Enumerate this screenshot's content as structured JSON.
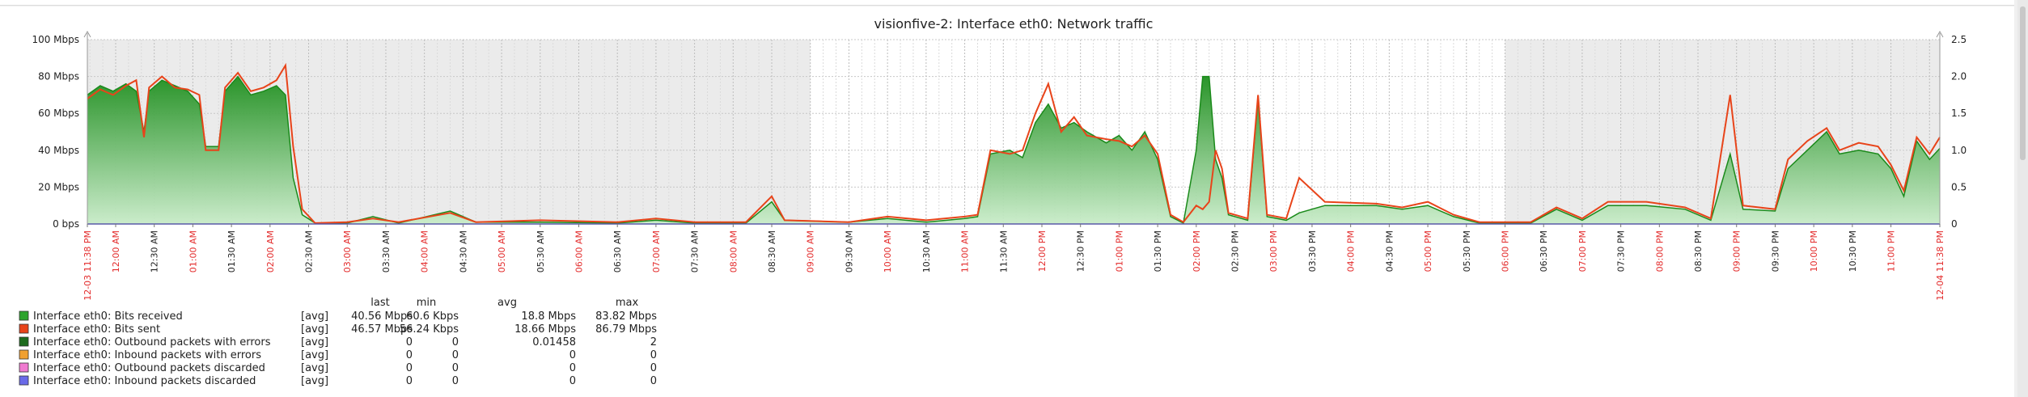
{
  "chart_data": {
    "type": "area",
    "title": "visionfive-2: Interface eth0: Network traffic",
    "y_left": {
      "ticks": [
        "0 bps",
        "20 Mbps",
        "40 Mbps",
        "60 Mbps",
        "80 Mbps",
        "100 Mbps"
      ],
      "min": 0,
      "max": 100,
      "unit": "Mbps"
    },
    "y_right": {
      "ticks": [
        "0",
        "0.5",
        "1.0",
        "1.5",
        "2.0",
        "2.5"
      ],
      "min": 0,
      "max": 2.5
    },
    "x_labels": [
      {
        "text": "12-03 11:38 PM",
        "red": true
      },
      {
        "text": "12:00 AM",
        "red": true
      },
      {
        "text": "12:30 AM",
        "red": false
      },
      {
        "text": "01:00 AM",
        "red": true
      },
      {
        "text": "01:30 AM",
        "red": false
      },
      {
        "text": "02:00 AM",
        "red": true
      },
      {
        "text": "02:30 AM",
        "red": false
      },
      {
        "text": "03:00 AM",
        "red": true
      },
      {
        "text": "03:30 AM",
        "red": false
      },
      {
        "text": "04:00 AM",
        "red": true
      },
      {
        "text": "04:30 AM",
        "red": false
      },
      {
        "text": "05:00 AM",
        "red": true
      },
      {
        "text": "05:30 AM",
        "red": false
      },
      {
        "text": "06:00 AM",
        "red": true
      },
      {
        "text": "06:30 AM",
        "red": false
      },
      {
        "text": "07:00 AM",
        "red": true
      },
      {
        "text": "07:30 AM",
        "red": false
      },
      {
        "text": "08:00 AM",
        "red": true
      },
      {
        "text": "08:30 AM",
        "red": false
      },
      {
        "text": "09:00 AM",
        "red": true
      },
      {
        "text": "09:30 AM",
        "red": false
      },
      {
        "text": "10:00 AM",
        "red": true
      },
      {
        "text": "10:30 AM",
        "red": false
      },
      {
        "text": "11:00 AM",
        "red": true
      },
      {
        "text": "11:30 AM",
        "red": false
      },
      {
        "text": "12:00 PM",
        "red": true
      },
      {
        "text": "12:30 PM",
        "red": false
      },
      {
        "text": "01:00 PM",
        "red": true
      },
      {
        "text": "01:30 PM",
        "red": false
      },
      {
        "text": "02:00 PM",
        "red": true
      },
      {
        "text": "02:30 PM",
        "red": false
      },
      {
        "text": "03:00 PM",
        "red": true
      },
      {
        "text": "03:30 PM",
        "red": false
      },
      {
        "text": "04:00 PM",
        "red": true
      },
      {
        "text": "04:30 PM",
        "red": false
      },
      {
        "text": "05:00 PM",
        "red": true
      },
      {
        "text": "05:30 PM",
        "red": false
      },
      {
        "text": "06:00 PM",
        "red": true
      },
      {
        "text": "06:30 PM",
        "red": false
      },
      {
        "text": "07:00 PM",
        "red": true
      },
      {
        "text": "07:30 PM",
        "red": false
      },
      {
        "text": "08:00 PM",
        "red": true
      },
      {
        "text": "08:30 PM",
        "red": false
      },
      {
        "text": "09:00 PM",
        "red": true
      },
      {
        "text": "09:30 PM",
        "red": false
      },
      {
        "text": "10:00 PM",
        "red": true
      },
      {
        "text": "10:30 PM",
        "red": false
      },
      {
        "text": "11:00 PM",
        "red": true
      },
      {
        "text": "12-04 11:38 PM",
        "red": true
      }
    ],
    "x_hours": {
      "start": "2023-12-03 23:38",
      "end": "2023-12-04 23:38"
    },
    "shaded_periods": [
      {
        "from": "2023-12-03 23:38",
        "to": "2023-12-04 09:00"
      },
      {
        "from": "2023-12-04 18:00",
        "to": "2023-12-04 23:38"
      }
    ],
    "series": [
      {
        "name": "Interface eth0: Bits received",
        "color": "#2da32d",
        "func": "[avg]",
        "last": "40.56 Mbps",
        "min": "60.6 Kbps",
        "avg": "18.8 Mbps",
        "max": "83.82 Mbps",
        "points": [
          [
            "2023-12-03 23:38",
            70
          ],
          [
            "2023-12-03 23:48",
            75
          ],
          [
            "2023-12-03 23:58",
            72
          ],
          [
            "2023-12-04 00:08",
            76
          ],
          [
            "2023-12-04 00:16",
            72
          ],
          [
            "2023-12-04 00:22",
            50
          ],
          [
            "2023-12-04 00:26",
            72
          ],
          [
            "2023-12-04 00:36",
            78
          ],
          [
            "2023-12-04 00:46",
            75
          ],
          [
            "2023-12-04 00:56",
            72
          ],
          [
            "2023-12-04 01:05",
            65
          ],
          [
            "2023-12-04 01:10",
            42
          ],
          [
            "2023-12-04 01:20",
            42
          ],
          [
            "2023-12-04 01:25",
            72
          ],
          [
            "2023-12-04 01:35",
            80
          ],
          [
            "2023-12-04 01:45",
            70
          ],
          [
            "2023-12-04 01:55",
            72
          ],
          [
            "2023-12-04 02:05",
            75
          ],
          [
            "2023-12-04 02:12",
            70
          ],
          [
            "2023-12-04 02:18",
            25
          ],
          [
            "2023-12-04 02:25",
            5
          ],
          [
            "2023-12-04 02:35",
            0.5
          ],
          [
            "2023-12-04 03:00",
            0.5
          ],
          [
            "2023-12-04 03:20",
            4
          ],
          [
            "2023-12-04 03:40",
            0.5
          ],
          [
            "2023-12-04 04:20",
            7
          ],
          [
            "2023-12-04 04:40",
            1
          ],
          [
            "2023-12-04 05:30",
            1
          ],
          [
            "2023-12-04 06:30",
            0.5
          ],
          [
            "2023-12-04 07:00",
            2
          ],
          [
            "2023-12-04 07:30",
            0.5
          ],
          [
            "2023-12-04 08:10",
            0.5
          ],
          [
            "2023-12-04 08:30",
            12
          ],
          [
            "2023-12-04 08:40",
            2
          ],
          [
            "2023-12-04 09:30",
            1
          ],
          [
            "2023-12-04 10:00",
            3
          ],
          [
            "2023-12-04 10:30",
            1
          ],
          [
            "2023-12-04 11:00",
            3
          ],
          [
            "2023-12-04 11:10",
            4
          ],
          [
            "2023-12-04 11:20",
            38
          ],
          [
            "2023-12-04 11:35",
            40
          ],
          [
            "2023-12-04 11:45",
            36
          ],
          [
            "2023-12-04 11:55",
            55
          ],
          [
            "2023-12-04 12:05",
            65
          ],
          [
            "2023-12-04 12:15",
            52
          ],
          [
            "2023-12-04 12:25",
            55
          ],
          [
            "2023-12-04 12:35",
            50
          ],
          [
            "2023-12-04 12:50",
            44
          ],
          [
            "2023-12-04 13:00",
            48
          ],
          [
            "2023-12-04 13:10",
            40
          ],
          [
            "2023-12-04 13:20",
            50
          ],
          [
            "2023-12-04 13:30",
            35
          ],
          [
            "2023-12-04 13:40",
            4
          ],
          [
            "2023-12-04 13:50",
            0.5
          ],
          [
            "2023-12-04 14:00",
            40
          ],
          [
            "2023-12-04 14:05",
            80
          ],
          [
            "2023-12-04 14:10",
            80
          ],
          [
            "2023-12-04 14:15",
            35
          ],
          [
            "2023-12-04 14:20",
            25
          ],
          [
            "2023-12-04 14:25",
            5
          ],
          [
            "2023-12-04 14:40",
            2
          ],
          [
            "2023-12-04 14:48",
            68
          ],
          [
            "2023-12-04 14:55",
            4
          ],
          [
            "2023-12-04 15:10",
            2
          ],
          [
            "2023-12-04 15:20",
            6
          ],
          [
            "2023-12-04 15:40",
            10
          ],
          [
            "2023-12-04 16:20",
            10
          ],
          [
            "2023-12-04 16:40",
            8
          ],
          [
            "2023-12-04 17:00",
            10
          ],
          [
            "2023-12-04 17:20",
            4
          ],
          [
            "2023-12-04 17:40",
            0.5
          ],
          [
            "2023-12-04 18:20",
            0.5
          ],
          [
            "2023-12-04 18:40",
            8
          ],
          [
            "2023-12-04 19:00",
            2
          ],
          [
            "2023-12-04 19:20",
            10
          ],
          [
            "2023-12-04 19:50",
            10
          ],
          [
            "2023-12-04 20:20",
            8
          ],
          [
            "2023-12-04 20:40",
            2
          ],
          [
            "2023-12-04 20:55",
            38
          ],
          [
            "2023-12-04 21:05",
            8
          ],
          [
            "2023-12-04 21:30",
            7
          ],
          [
            "2023-12-04 21:40",
            30
          ],
          [
            "2023-12-04 21:55",
            40
          ],
          [
            "2023-12-04 22:10",
            50
          ],
          [
            "2023-12-04 22:20",
            38
          ],
          [
            "2023-12-04 22:35",
            40
          ],
          [
            "2023-12-04 22:50",
            38
          ],
          [
            "2023-12-04 23:00",
            30
          ],
          [
            "2023-12-04 23:10",
            15
          ],
          [
            "2023-12-04 23:20",
            45
          ],
          [
            "2023-12-04 23:30",
            35
          ],
          [
            "2023-12-04 23:38",
            41
          ]
        ]
      },
      {
        "name": "Interface eth0: Bits sent",
        "color": "#e8441a",
        "func": "[avg]",
        "last": "46.57 Mbps",
        "min": "56.24 Kbps",
        "avg": "18.66 Mbps",
        "max": "86.79 Mbps",
        "points": [
          [
            "2023-12-03 23:38",
            68
          ],
          [
            "2023-12-03 23:48",
            73
          ],
          [
            "2023-12-03 23:58",
            70
          ],
          [
            "2023-12-04 00:08",
            75
          ],
          [
            "2023-12-04 00:16",
            78
          ],
          [
            "2023-12-04 00:22",
            47
          ],
          [
            "2023-12-04 00:26",
            74
          ],
          [
            "2023-12-04 00:36",
            80
          ],
          [
            "2023-12-04 00:46",
            74
          ],
          [
            "2023-12-04 00:56",
            73
          ],
          [
            "2023-12-04 01:05",
            70
          ],
          [
            "2023-12-04 01:10",
            40
          ],
          [
            "2023-12-04 01:20",
            40
          ],
          [
            "2023-12-04 01:25",
            74
          ],
          [
            "2023-12-04 01:35",
            82
          ],
          [
            "2023-12-04 01:45",
            72
          ],
          [
            "2023-12-04 01:55",
            74
          ],
          [
            "2023-12-04 02:05",
            78
          ],
          [
            "2023-12-04 02:12",
            86
          ],
          [
            "2023-12-04 02:18",
            42
          ],
          [
            "2023-12-04 02:25",
            8
          ],
          [
            "2023-12-04 02:35",
            0.5
          ],
          [
            "2023-12-04 03:00",
            1
          ],
          [
            "2023-12-04 03:20",
            3
          ],
          [
            "2023-12-04 03:40",
            1
          ],
          [
            "2023-12-04 04:20",
            6
          ],
          [
            "2023-12-04 04:40",
            1
          ],
          [
            "2023-12-04 05:30",
            2
          ],
          [
            "2023-12-04 06:30",
            1
          ],
          [
            "2023-12-04 07:00",
            3
          ],
          [
            "2023-12-04 07:30",
            1
          ],
          [
            "2023-12-04 08:10",
            1
          ],
          [
            "2023-12-04 08:30",
            15
          ],
          [
            "2023-12-04 08:40",
            2
          ],
          [
            "2023-12-04 09:30",
            1
          ],
          [
            "2023-12-04 10:00",
            4
          ],
          [
            "2023-12-04 10:30",
            2
          ],
          [
            "2023-12-04 11:00",
            4
          ],
          [
            "2023-12-04 11:10",
            5
          ],
          [
            "2023-12-04 11:20",
            40
          ],
          [
            "2023-12-04 11:35",
            38
          ],
          [
            "2023-12-04 11:45",
            40
          ],
          [
            "2023-12-04 11:55",
            60
          ],
          [
            "2023-12-04 12:05",
            76
          ],
          [
            "2023-12-04 12:15",
            50
          ],
          [
            "2023-12-04 12:25",
            58
          ],
          [
            "2023-12-04 12:35",
            48
          ],
          [
            "2023-12-04 12:50",
            46
          ],
          [
            "2023-12-04 13:00",
            45
          ],
          [
            "2023-12-04 13:10",
            42
          ],
          [
            "2023-12-04 13:20",
            48
          ],
          [
            "2023-12-04 13:30",
            38
          ],
          [
            "2023-12-04 13:40",
            5
          ],
          [
            "2023-12-04 13:50",
            1
          ],
          [
            "2023-12-04 14:00",
            10
          ],
          [
            "2023-12-04 14:05",
            8
          ],
          [
            "2023-12-04 14:10",
            12
          ],
          [
            "2023-12-04 14:15",
            40
          ],
          [
            "2023-12-04 14:20",
            30
          ],
          [
            "2023-12-04 14:25",
            6
          ],
          [
            "2023-12-04 14:40",
            3
          ],
          [
            "2023-12-04 14:48",
            70
          ],
          [
            "2023-12-04 14:55",
            5
          ],
          [
            "2023-12-04 15:10",
            3
          ],
          [
            "2023-12-04 15:20",
            25
          ],
          [
            "2023-12-04 15:40",
            12
          ],
          [
            "2023-12-04 16:20",
            11
          ],
          [
            "2023-12-04 16:40",
            9
          ],
          [
            "2023-12-04 17:00",
            12
          ],
          [
            "2023-12-04 17:20",
            5
          ],
          [
            "2023-12-04 17:40",
            1
          ],
          [
            "2023-12-04 18:20",
            1
          ],
          [
            "2023-12-04 18:40",
            9
          ],
          [
            "2023-12-04 19:00",
            3
          ],
          [
            "2023-12-04 19:20",
            12
          ],
          [
            "2023-12-04 19:50",
            12
          ],
          [
            "2023-12-04 20:20",
            9
          ],
          [
            "2023-12-04 20:40",
            3
          ],
          [
            "2023-12-04 20:55",
            70
          ],
          [
            "2023-12-04 21:05",
            10
          ],
          [
            "2023-12-04 21:30",
            8
          ],
          [
            "2023-12-04 21:40",
            35
          ],
          [
            "2023-12-04 21:55",
            45
          ],
          [
            "2023-12-04 22:10",
            52
          ],
          [
            "2023-12-04 22:20",
            40
          ],
          [
            "2023-12-04 22:35",
            44
          ],
          [
            "2023-12-04 22:50",
            42
          ],
          [
            "2023-12-04 23:00",
            32
          ],
          [
            "2023-12-04 23:10",
            18
          ],
          [
            "2023-12-04 23:20",
            47
          ],
          [
            "2023-12-04 23:30",
            38
          ],
          [
            "2023-12-04 23:38",
            47
          ]
        ]
      },
      {
        "name": "Interface eth0: Outbound packets with errors",
        "color": "#1d6b1d",
        "func": "[avg]",
        "last": "0",
        "min": "0",
        "avg": "0.01458",
        "max": "2"
      },
      {
        "name": "Interface eth0: Inbound packets with errors",
        "color": "#f0a030",
        "func": "[avg]",
        "last": "0",
        "min": "0",
        "avg": "0",
        "max": "0"
      },
      {
        "name": "Interface eth0: Outbound packets discarded",
        "color": "#f07ad0",
        "func": "[avg]",
        "last": "0",
        "min": "0",
        "avg": "0",
        "max": "0"
      },
      {
        "name": "Interface eth0: Inbound packets discarded",
        "color": "#6a6ae8",
        "func": "[avg]",
        "last": "0",
        "min": "0",
        "avg": "0",
        "max": "0"
      }
    ],
    "legend_headers": [
      "last",
      "min",
      "avg",
      "max"
    ],
    "grid": true,
    "legend_position": "bottom-left"
  }
}
